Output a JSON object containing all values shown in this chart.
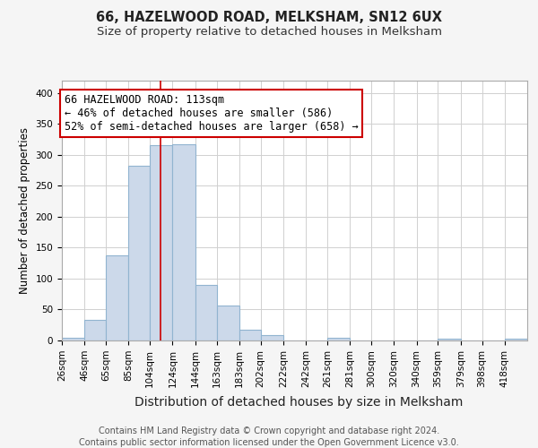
{
  "title": "66, HAZELWOOD ROAD, MELKSHAM, SN12 6UX",
  "subtitle": "Size of property relative to detached houses in Melksham",
  "xlabel": "Distribution of detached houses by size in Melksham",
  "ylabel": "Number of detached properties",
  "bin_labels": [
    "26sqm",
    "46sqm",
    "65sqm",
    "85sqm",
    "104sqm",
    "124sqm",
    "144sqm",
    "163sqm",
    "183sqm",
    "202sqm",
    "222sqm",
    "242sqm",
    "261sqm",
    "281sqm",
    "300sqm",
    "320sqm",
    "340sqm",
    "359sqm",
    "379sqm",
    "398sqm",
    "418sqm"
  ],
  "bin_edges": [
    26,
    46,
    65,
    85,
    104,
    124,
    144,
    163,
    183,
    202,
    222,
    242,
    261,
    281,
    300,
    320,
    340,
    359,
    379,
    398,
    418
  ],
  "bar_heights": [
    5,
    33,
    137,
    283,
    315,
    317,
    90,
    57,
    18,
    9,
    0,
    0,
    4,
    0,
    0,
    0,
    0,
    3,
    0,
    0,
    3
  ],
  "bar_color": "#ccd9ea",
  "bar_edge_color": "#91b4d0",
  "property_size": 113,
  "vline_color": "#cc0000",
  "annotation_text": "66 HAZELWOOD ROAD: 113sqm\n← 46% of detached houses are smaller (586)\n52% of semi-detached houses are larger (658) →",
  "annotation_box_color": "white",
  "annotation_box_edge": "#cc0000",
  "ylim": [
    0,
    420
  ],
  "yticks": [
    0,
    50,
    100,
    150,
    200,
    250,
    300,
    350,
    400
  ],
  "footer_line1": "Contains HM Land Registry data © Crown copyright and database right 2024.",
  "footer_line2": "Contains public sector information licensed under the Open Government Licence v3.0.",
  "bg_color": "#f5f5f5",
  "plot_bg_color": "#ffffff",
  "title_fontsize": 10.5,
  "subtitle_fontsize": 9.5,
  "xlabel_fontsize": 10,
  "ylabel_fontsize": 8.5,
  "tick_fontsize": 7.5,
  "footer_fontsize": 7,
  "annotation_fontsize": 8.5
}
